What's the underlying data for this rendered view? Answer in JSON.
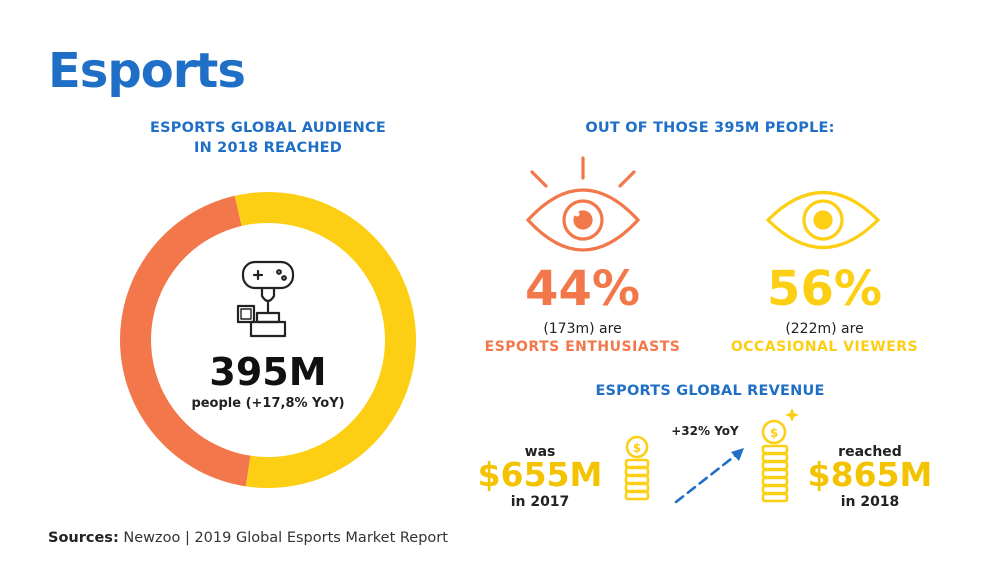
{
  "header": {
    "title": "Esports"
  },
  "audience": {
    "heading_line1": "ESPORTS GLOBAL AUDIENCE",
    "heading_line2": "IN 2018 REACHED",
    "value": "395M",
    "caption": "people (+17,8% YoY)"
  },
  "breakdown": {
    "heading": "OUT OF THOSE 395M PEOPLE:",
    "enthusiasts": {
      "percent": "44%",
      "count": "(173m) are",
      "label": "ESPORTS ENTHUSIASTS"
    },
    "occasional": {
      "percent": "56%",
      "count": "(222m) are",
      "label": "OCCASIONAL VIEWERS"
    }
  },
  "revenue": {
    "heading": "ESPORTS GLOBAL REVENUE",
    "before_prefix": "was",
    "before_value": "$655M",
    "before_suffix": "in 2017",
    "growth": "+32% YoY",
    "after_prefix": "reached",
    "after_value": "$865M",
    "after_suffix": "in 2018"
  },
  "footer": {
    "sources_label": "Sources:",
    "sources_text": "Newzoo | 2019 Global Esports Market Report"
  },
  "colors": {
    "blue": "#1f6fc6",
    "orange": "#f2784b",
    "yellow": "#fccf14",
    "dark": "#222222"
  },
  "chart_data": {
    "type": "pie",
    "categories": [
      "Esports Enthusiasts",
      "Occasional Viewers"
    ],
    "values": [
      44,
      56
    ],
    "colors": [
      "#f2784b",
      "#fccf14"
    ]
  }
}
